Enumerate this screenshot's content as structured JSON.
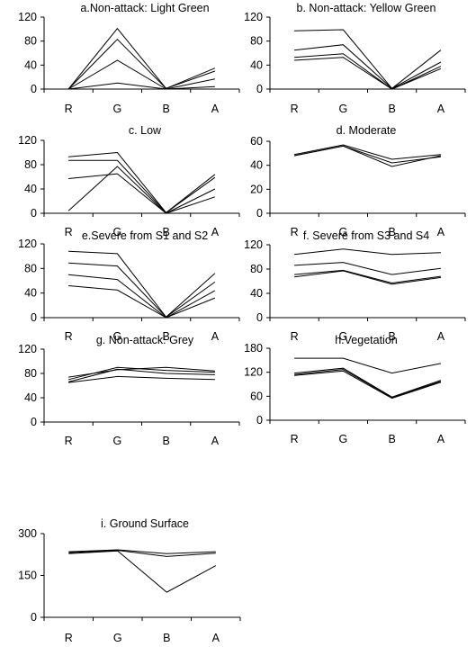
{
  "chart_data": [
    {
      "type": "line",
      "title": "a.Non-attack: Light Green",
      "categories": [
        "R",
        "G",
        "B",
        "A"
      ],
      "yticks": [
        "0",
        "40",
        "80",
        "120"
      ],
      "ylim": [
        0,
        120
      ],
      "series": [
        {
          "values": [
            0,
            101,
            1,
            35
          ]
        },
        {
          "values": [
            0,
            83,
            1,
            30
          ]
        },
        {
          "values": [
            0,
            48,
            0,
            17
          ]
        },
        {
          "values": [
            0,
            10,
            0,
            4
          ]
        }
      ]
    },
    {
      "type": "line",
      "title": "b. Non-attack: Yellow Green",
      "categories": [
        "R",
        "G",
        "B",
        "A"
      ],
      "yticks": [
        "0",
        "40",
        "80",
        "120"
      ],
      "ylim": [
        0,
        120
      ],
      "series": [
        {
          "values": [
            97,
            99,
            1,
            65
          ]
        },
        {
          "values": [
            65,
            74,
            1,
            45
          ]
        },
        {
          "values": [
            53,
            59,
            0,
            38
          ]
        },
        {
          "values": [
            48,
            53,
            0,
            34
          ]
        }
      ]
    },
    {
      "type": "line",
      "title": "c. Low",
      "categories": [
        "R",
        "G",
        "B",
        "A"
      ],
      "yticks": [
        "0",
        "40",
        "80",
        "120"
      ],
      "ylim": [
        0,
        120
      ],
      "series": [
        {
          "values": [
            93,
            100,
            1,
            64
          ]
        },
        {
          "values": [
            87,
            87,
            1,
            59
          ]
        },
        {
          "values": [
            57,
            65,
            0,
            40
          ]
        },
        {
          "values": [
            4,
            77,
            0,
            27
          ]
        }
      ]
    },
    {
      "type": "line",
      "title": "d. Moderate",
      "categories": [
        "R",
        "G",
        "B",
        "A"
      ],
      "yticks": [
        "0",
        "20",
        "40",
        "60"
      ],
      "ylim": [
        0,
        60
      ],
      "series": [
        {
          "values": [
            49,
            57,
            45,
            49
          ]
        },
        {
          "values": [
            48,
            56,
            39,
            48
          ]
        },
        {
          "values": [
            48,
            56,
            42,
            47
          ]
        }
      ]
    },
    {
      "type": "line",
      "title": "e.Severe from S1 and S2",
      "categories": [
        "R",
        "G",
        "B",
        "A"
      ],
      "yticks": [
        "0",
        "40",
        "80",
        "120"
      ],
      "ylim": [
        0,
        120
      ],
      "series": [
        {
          "values": [
            108,
            104,
            1,
            72
          ]
        },
        {
          "values": [
            89,
            84,
            1,
            58
          ]
        },
        {
          "values": [
            70,
            62,
            0,
            44
          ]
        },
        {
          "values": [
            52,
            45,
            0,
            32
          ]
        }
      ]
    },
    {
      "type": "line",
      "title": "f. Severe from S3 and S4",
      "categories": [
        "R",
        "G",
        "B",
        "A"
      ],
      "yticks": [
        "0",
        "40",
        "80",
        "120"
      ],
      "ylim": [
        0,
        120
      ],
      "series": [
        {
          "values": [
            104,
            113,
            104,
            107
          ]
        },
        {
          "values": [
            86,
            91,
            71,
            81
          ]
        },
        {
          "values": [
            71,
            78,
            57,
            68
          ]
        },
        {
          "values": [
            67,
            77,
            55,
            66
          ]
        }
      ]
    },
    {
      "type": "line",
      "title": "g. Non-attack: Grey",
      "categories": [
        "R",
        "G",
        "B",
        "A"
      ],
      "yticks": [
        "0",
        "40",
        "80",
        "120"
      ],
      "ylim": [
        0,
        120
      ],
      "series": [
        {
          "values": [
            74,
            86,
            90,
            84
          ]
        },
        {
          "values": [
            70,
            90,
            85,
            82
          ]
        },
        {
          "values": [
            66,
            87,
            80,
            78
          ]
        },
        {
          "values": [
            65,
            75,
            72,
            70
          ]
        }
      ]
    },
    {
      "type": "line",
      "title": "h.Vegetation",
      "categories": [
        "R",
        "G",
        "B",
        "A"
      ],
      "yticks": [
        "0",
        "60",
        "120",
        "180"
      ],
      "ylim": [
        0,
        180
      ],
      "series": [
        {
          "values": [
            155,
            155,
            118,
            142
          ]
        },
        {
          "values": [
            118,
            130,
            58,
            100
          ]
        },
        {
          "values": [
            114,
            127,
            57,
            97
          ]
        },
        {
          "values": [
            112,
            123,
            55,
            95
          ]
        }
      ]
    },
    {
      "type": "line",
      "title": "i. Ground Surface",
      "categories": [
        "R",
        "G",
        "B",
        "A"
      ],
      "yticks": [
        "0",
        "150",
        "300"
      ],
      "ylim": [
        0,
        300
      ],
      "series": [
        {
          "values": [
            235,
            242,
            228,
            235
          ]
        },
        {
          "values": [
            232,
            240,
            218,
            230
          ]
        },
        {
          "values": [
            228,
            238,
            90,
            185
          ]
        }
      ]
    }
  ]
}
